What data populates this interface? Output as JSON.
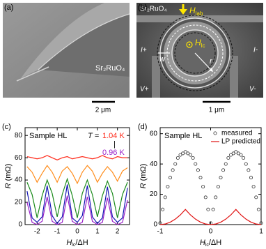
{
  "panels": {
    "a": {
      "label": "(a)",
      "material": "Sr₂RuO₄",
      "scale_bar": "2 μm"
    },
    "b": {
      "label": "(b)",
      "material": "Sr₂RuO₄",
      "field_lab": [
        "H",
        "lab"
      ],
      "field_lc": [
        "H",
        "lc"
      ],
      "current_plus": "I+",
      "current_minus": "I-",
      "voltage_plus": "V+",
      "voltage_minus": "V-",
      "width": "w",
      "radius": "r",
      "scale_bar": "1 μm"
    }
  },
  "chart_data": [
    {
      "type": "line",
      "label": "(c)",
      "sample": "Sample HL",
      "temperature_label": "T =",
      "temp_high": "1.04 K",
      "temp_separator": "|",
      "temp_low": "0.96 K",
      "temp_high_color": "#ff2a1a",
      "temp_low_color": "#9a20c8",
      "y_label": [
        "R",
        " (mΩ)"
      ],
      "x_label": [
        "H",
        "lc",
        "/ΔH"
      ],
      "xlim": [
        -2.6,
        2.6
      ],
      "xticks": [
        -2,
        -1,
        0,
        1,
        2
      ],
      "ylim": [
        0,
        87
      ],
      "yticks": [
        0,
        20,
        40,
        60,
        80
      ],
      "x": [
        -2.5,
        -2.25,
        -2,
        -1.75,
        -1.5,
        -1.25,
        -1,
        -0.75,
        -0.5,
        -0.25,
        0,
        0.25,
        0.5,
        0.75,
        1,
        1.25,
        1.5,
        1.75,
        2,
        2.25,
        2.5
      ],
      "series": [
        {
          "color": "#ff2a1a",
          "values": [
            61,
            60,
            59,
            60,
            62,
            60,
            58,
            60,
            61,
            59,
            60,
            61,
            60,
            59,
            60,
            62,
            60,
            59,
            61,
            60,
            60
          ]
        },
        {
          "color": "#ff8c1a",
          "values": [
            52,
            47,
            38,
            46,
            53,
            47,
            38,
            48,
            52,
            46,
            37,
            47,
            53,
            48,
            38,
            46,
            52,
            47,
            39,
            48,
            51
          ]
        },
        {
          "color": "#1a8a1a",
          "values": [
            38,
            27,
            6,
            26,
            40,
            28,
            7,
            27,
            41,
            26,
            6,
            28,
            40,
            27,
            7,
            26,
            39,
            28,
            6,
            27,
            38
          ]
        },
        {
          "color": "#1414b4",
          "values": [
            30,
            6,
            2,
            7,
            35,
            8,
            1,
            7,
            36,
            6,
            2,
            8,
            35,
            7,
            1,
            6,
            34,
            7,
            2,
            6,
            33
          ]
        },
        {
          "color": "#9a20c8",
          "values": [
            20,
            2,
            0,
            3,
            25,
            3,
            0,
            2,
            26,
            3,
            0,
            2,
            25,
            3,
            0,
            2,
            24,
            3,
            0,
            2,
            22
          ]
        }
      ]
    },
    {
      "type": "scatter",
      "label": "(d)",
      "sample": "Sample HL",
      "y_label": [
        "R",
        " (mΩ)"
      ],
      "x_label": [
        "H",
        "lc",
        "/ΔH"
      ],
      "xlim": [
        -1,
        1
      ],
      "xticks": [
        -1,
        0,
        1
      ],
      "ylim": [
        0,
        64
      ],
      "yticks": [
        0,
        20,
        40,
        60
      ],
      "legend": "top-right",
      "series": [
        {
          "name": "measured",
          "mode": "markers",
          "color": "#333333",
          "x": [
            -1,
            -0.95,
            -0.9,
            -0.85,
            -0.8,
            -0.75,
            -0.7,
            -0.65,
            -0.6,
            -0.55,
            -0.5,
            -0.45,
            -0.4,
            -0.35,
            -0.3,
            -0.25,
            -0.2,
            -0.15,
            -0.1,
            -0.05,
            0,
            0.05,
            0.1,
            0.15,
            0.2,
            0.25,
            0.3,
            0.35,
            0.4,
            0.45,
            0.5,
            0.55,
            0.6,
            0.65,
            0.7,
            0.75,
            0.8,
            0.85,
            0.9,
            0.95,
            1
          ],
          "values": [
            1,
            10,
            18,
            25,
            31,
            36,
            40,
            44,
            46,
            47,
            48,
            47,
            46,
            44,
            40,
            36,
            31,
            25,
            18,
            10,
            1,
            10,
            18,
            25,
            31,
            36,
            40,
            44,
            46,
            47,
            48,
            47,
            46,
            44,
            40,
            36,
            31,
            25,
            18,
            10,
            1
          ]
        },
        {
          "name": "LP predicted",
          "mode": "lines",
          "color": "#e01010",
          "x": [
            -1,
            -0.9,
            -0.8,
            -0.7,
            -0.6,
            -0.5,
            -0.4,
            -0.3,
            -0.2,
            -0.1,
            0,
            0.1,
            0.2,
            0.3,
            0.4,
            0.5,
            0.6,
            0.7,
            0.8,
            0.9,
            1
          ],
          "values": [
            0,
            0.4,
            1.6,
            3.6,
            6.4,
            10,
            6.4,
            3.6,
            1.6,
            0.4,
            0,
            0.4,
            1.6,
            3.6,
            6.4,
            10,
            6.4,
            3.6,
            1.6,
            0.4,
            0
          ]
        }
      ]
    }
  ]
}
